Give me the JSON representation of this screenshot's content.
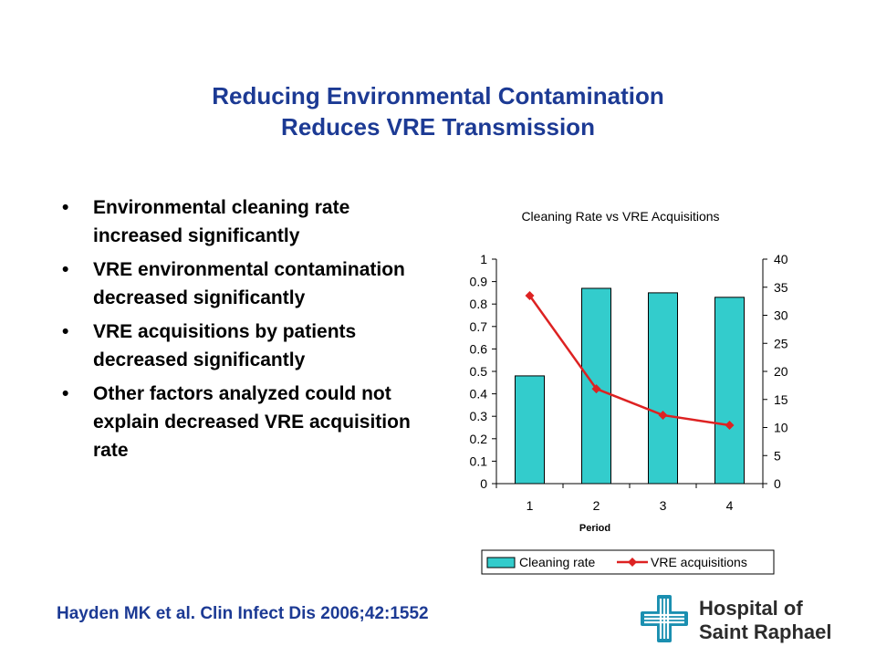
{
  "title": {
    "line1": "Reducing Environmental Contamination",
    "line2": "Reduces VRE Transmission"
  },
  "bullets": [
    "Environmental cleaning rate increased significantly",
    "VRE environmental contamination decreased significantly",
    "VRE acquisitions by patients decreased significantly",
    "Other factors analyzed could not explain decreased VRE acquisition rate"
  ],
  "bullet_glyph": "•",
  "citation": "Hayden MK et al.  Clin Infect Dis 2006;42:1552",
  "logo": {
    "line1": "Hospital of",
    "line2": "Saint Raphael",
    "icon": "cross-logo-icon",
    "color": "#1a8fb0"
  },
  "chart_data": {
    "type": "bar",
    "title": "Cleaning Rate vs VRE Acquisitions",
    "xlabel": "Period",
    "categories": [
      "1",
      "2",
      "3",
      "4"
    ],
    "series": [
      {
        "name": "Cleaning rate",
        "type": "bar",
        "axis": "left",
        "color": "#33cccc",
        "values": [
          0.48,
          0.87,
          0.85,
          0.83
        ]
      },
      {
        "name": "VRE acquisitions",
        "type": "line",
        "axis": "right",
        "color": "#dd2222",
        "marker": "diamond",
        "values": [
          33.5,
          16.9,
          12.2,
          10.4
        ]
      }
    ],
    "y_left": {
      "min": 0,
      "max": 1,
      "ticks": [
        "0",
        "0.1",
        "0.2",
        "0.3",
        "0.4",
        "0.5",
        "0.6",
        "0.7",
        "0.8",
        "0.9",
        "1"
      ]
    },
    "y_right": {
      "min": 0,
      "max": 40,
      "ticks": [
        "0",
        "5",
        "10",
        "15",
        "20",
        "25",
        "30",
        "35",
        "40"
      ]
    },
    "grid": false,
    "legend_position": "bottom"
  }
}
